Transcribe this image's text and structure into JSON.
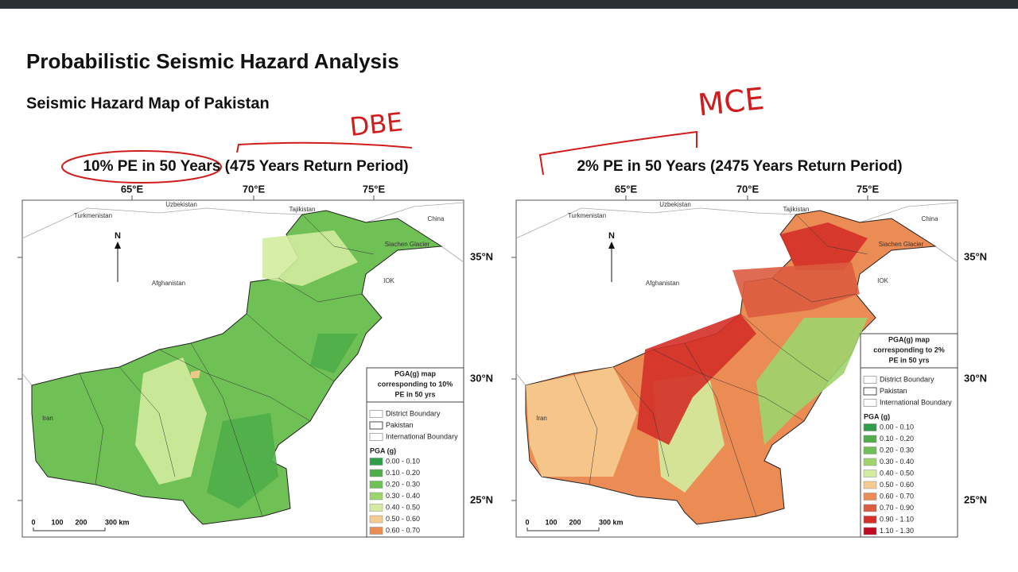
{
  "title": "Probabilistic Seismic Hazard Analysis",
  "subtitle": "Seismic Hazard Map of Pakistan",
  "annotations": [
    "DBE",
    "MCE"
  ],
  "maps": [
    {
      "heading": "10% PE in 50 Years (475 Years Return Period)",
      "lon_labels": [
        "65°E",
        "70°E",
        "75°E"
      ],
      "lat_labels": [
        "35°N",
        "30°N",
        "25°N"
      ],
      "places": [
        "Turkmenistan",
        "Uzbekistan",
        "Tajikistan",
        "China",
        "Siachen Glacier",
        "Afghanistan",
        "IOK",
        "Iran"
      ],
      "north": "N",
      "scale": [
        "0",
        "100",
        "200",
        "300 km"
      ],
      "legend": {
        "title": [
          "PGA(g) map",
          "corresponding to 10%",
          "PE in 50 yrs"
        ],
        "boundaries": [
          "District Boundary",
          "Pakistan",
          "International Boundary"
        ],
        "pga_title": "PGA (g)",
        "classes": [
          {
            "label": "0.00 - 0.10",
            "color": "#2e9e48"
          },
          {
            "label": "0.10 - 0.20",
            "color": "#4fae4a"
          },
          {
            "label": "0.20 - 0.30",
            "color": "#6fc055"
          },
          {
            "label": "0.30 - 0.40",
            "color": "#9dd46c"
          },
          {
            "label": "0.40 - 0.50",
            "color": "#d3ec9e"
          },
          {
            "label": "0.50 - 0.60",
            "color": "#f6cb90"
          },
          {
            "label": "0.60 - 0.70",
            "color": "#ec8c55"
          }
        ]
      }
    },
    {
      "heading": "2% PE in 50 Years (2475 Years Return Period)",
      "lon_labels": [
        "65°E",
        "70°E",
        "75°E"
      ],
      "lat_labels": [
        "35°N",
        "30°N",
        "25°N"
      ],
      "places": [
        "Turkmenistan",
        "Uzbekistan",
        "Tajikistan",
        "China",
        "Siachen Glacier",
        "Afghanistan",
        "IOK",
        "Iran"
      ],
      "north": "N",
      "scale": [
        "0",
        "100",
        "200",
        "300 km"
      ],
      "legend": {
        "title": [
          "PGA(g) map",
          "corresponding to 2%",
          "PE in 50 yrs"
        ],
        "boundaries": [
          "District Boundary",
          "Pakistan",
          "International Boundary"
        ],
        "pga_title": "PGA (g)",
        "classes": [
          {
            "label": "0.00 - 0.10",
            "color": "#2e9e48"
          },
          {
            "label": "0.10 - 0.20",
            "color": "#4fae4a"
          },
          {
            "label": "0.20 - 0.30",
            "color": "#6fc055"
          },
          {
            "label": "0.30 - 0.40",
            "color": "#9dd46c"
          },
          {
            "label": "0.40 - 0.50",
            "color": "#d3ec9e"
          },
          {
            "label": "0.50 - 0.60",
            "color": "#f6cb90"
          },
          {
            "label": "0.60 - 0.70",
            "color": "#ec8c55"
          },
          {
            "label": "0.70 - 0.90",
            "color": "#dc5c3f"
          },
          {
            "label": "0.90 - 1.10",
            "color": "#d42f28"
          },
          {
            "label": "1.10 - 1.30",
            "color": "#bf0a1f"
          }
        ]
      }
    }
  ]
}
